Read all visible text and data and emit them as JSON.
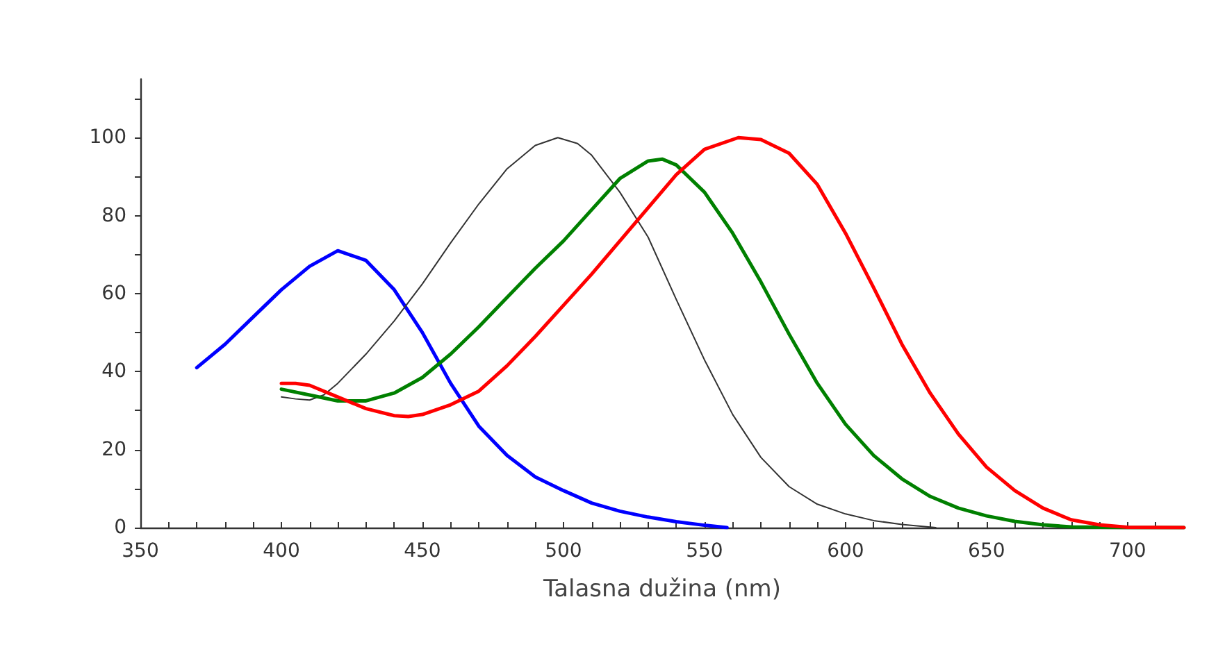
{
  "chart_data": {
    "type": "line",
    "xlabel": "Talasna dužina (nm)",
    "xlim": [
      350,
      720
    ],
    "xticks": [
      350,
      {
        "value": 360,
        "label": null
      },
      {
        "value": 370,
        "label": null
      },
      {
        "value": 380,
        "label": null
      },
      {
        "value": 390,
        "label": null
      },
      400,
      {
        "value": 410,
        "label": null
      },
      {
        "value": 420,
        "label": null
      },
      {
        "value": 430,
        "label": null
      },
      {
        "value": 440,
        "label": null
      },
      450,
      {
        "value": 460,
        "label": null
      },
      {
        "value": 470,
        "label": null
      },
      {
        "value": 480,
        "label": null
      },
      {
        "value": 490,
        "label": null
      },
      500,
      {
        "value": 510,
        "label": null
      },
      {
        "value": 520,
        "label": null
      },
      {
        "value": 530,
        "label": null
      },
      {
        "value": 540,
        "label": null
      },
      550,
      {
        "value": 560,
        "label": null
      },
      {
        "value": 570,
        "label": null
      },
      {
        "value": 580,
        "label": null
      },
      {
        "value": 590,
        "label": null
      },
      600,
      {
        "value": 610,
        "label": null
      },
      {
        "value": 620,
        "label": null
      },
      {
        "value": 630,
        "label": null
      },
      {
        "value": 640,
        "label": null
      },
      650,
      {
        "value": 660,
        "label": null
      },
      {
        "value": 670,
        "label": null
      },
      {
        "value": 680,
        "label": null
      },
      {
        "value": 690,
        "label": null
      },
      700,
      {
        "value": 710,
        "label": null
      }
    ],
    "ylim": [
      0,
      115
    ],
    "yticks": [
      0,
      {
        "value": 10,
        "label": null
      },
      20,
      {
        "value": 30,
        "label": null
      },
      40,
      {
        "value": 50,
        "label": null
      },
      60,
      {
        "value": 70,
        "label": null
      },
      80,
      {
        "value": 90,
        "label": null
      },
      100,
      {
        "value": 110,
        "label": null
      }
    ],
    "grid": false,
    "marker": "none",
    "line_style": "solid",
    "series": [
      {
        "color": "#0000ff",
        "x": [
          370,
          380,
          390,
          400,
          410,
          420,
          430,
          440,
          450,
          460,
          470,
          480,
          490,
          500,
          510,
          520,
          530,
          540,
          550,
          558
        ],
        "values": [
          41,
          47,
          54,
          61,
          67,
          71,
          68.5,
          61,
          50,
          37,
          26,
          18.5,
          13,
          9.5,
          6.3,
          4.2,
          2.7,
          1.5,
          0.6,
          0
        ]
      },
      {
        "color": "#333333",
        "x": [
          400,
          405,
          410,
          415,
          420,
          430,
          440,
          450,
          460,
          470,
          480,
          490,
          498,
          505,
          510,
          520,
          530,
          540,
          550,
          560,
          570,
          580,
          590,
          600,
          610,
          620,
          632
        ],
        "values": [
          33.5,
          33,
          32.7,
          34,
          37,
          44.5,
          53,
          62.5,
          73,
          83,
          92,
          98,
          100,
          98.5,
          95.5,
          86,
          74.5,
          58.5,
          43,
          29,
          18,
          10.5,
          6,
          3.5,
          1.8,
          0.8,
          0
        ]
      },
      {
        "color": "#008000",
        "x": [
          400,
          410,
          420,
          430,
          440,
          450,
          460,
          470,
          480,
          490,
          500,
          510,
          520,
          530,
          535,
          540,
          550,
          560,
          570,
          580,
          590,
          600,
          610,
          620,
          630,
          640,
          650,
          660,
          670,
          680,
          700,
          720
        ],
        "values": [
          35.5,
          34,
          32.5,
          32.5,
          34.5,
          38.5,
          44.5,
          51.5,
          59,
          66.5,
          73.5,
          81.5,
          89.5,
          94,
          94.5,
          93,
          86,
          75.5,
          63,
          49.6,
          37,
          26.5,
          18.5,
          12.5,
          8,
          5,
          3,
          1.6,
          0.7,
          0.2,
          0,
          0
        ]
      },
      {
        "color": "#ff0000",
        "x": [
          400,
          405,
          410,
          420,
          430,
          440,
          445,
          450,
          460,
          470,
          480,
          490,
          500,
          510,
          520,
          530,
          540,
          550,
          562,
          570,
          580,
          590,
          600,
          610,
          620,
          630,
          640,
          650,
          660,
          670,
          680,
          690,
          700,
          720
        ],
        "values": [
          37,
          37,
          36.5,
          33.5,
          30.5,
          28.7,
          28.5,
          29,
          31.5,
          35,
          41.5,
          49,
          57,
          65,
          73.5,
          82,
          90.5,
          97,
          100,
          99.5,
          96,
          88,
          75.5,
          61.5,
          47,
          34.5,
          24,
          15.5,
          9.5,
          5,
          2,
          0.7,
          0.1,
          0
        ]
      }
    ]
  }
}
